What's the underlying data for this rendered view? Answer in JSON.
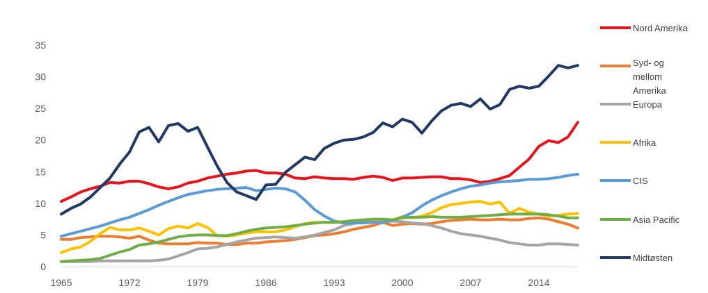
{
  "chart_data": {
    "type": "line",
    "title": "",
    "xlabel": "",
    "ylabel": "",
    "xlim": [
      1965,
      2018
    ],
    "ylim": [
      0,
      35
    ],
    "yticks": [
      0,
      5,
      10,
      15,
      20,
      25,
      30,
      35
    ],
    "xticks": [
      1965,
      1972,
      1979,
      1986,
      1993,
      2000,
      2007,
      2014
    ],
    "grid": false,
    "legend_position": "right",
    "x": [
      1965,
      1966,
      1967,
      1968,
      1969,
      1970,
      1971,
      1972,
      1973,
      1974,
      1975,
      1976,
      1977,
      1978,
      1979,
      1980,
      1981,
      1982,
      1983,
      1984,
      1985,
      1986,
      1987,
      1988,
      1989,
      1990,
      1991,
      1992,
      1993,
      1994,
      1995,
      1996,
      1997,
      1998,
      1999,
      2000,
      2001,
      2002,
      2003,
      2004,
      2005,
      2006,
      2007,
      2008,
      2009,
      2010,
      2011,
      2012,
      2013,
      2014,
      2015,
      2016,
      2017,
      2018
    ],
    "series": [
      {
        "name": "Nord Amerika",
        "color": "#e8141b",
        "values": [
          10.3,
          11.0,
          11.8,
          12.3,
          12.7,
          13.3,
          13.2,
          13.5,
          13.5,
          13.1,
          12.6,
          12.3,
          12.6,
          13.2,
          13.5,
          14.0,
          14.3,
          14.6,
          14.8,
          15.1,
          15.2,
          14.8,
          14.8,
          14.6,
          14.0,
          13.9,
          14.2,
          14.0,
          13.9,
          13.9,
          13.8,
          14.1,
          14.3,
          14.1,
          13.6,
          14.0,
          14.0,
          14.1,
          14.2,
          14.2,
          13.9,
          13.9,
          13.7,
          13.3,
          13.5,
          13.9,
          14.4,
          15.7,
          17.0,
          19.0,
          19.9,
          19.6,
          20.5,
          22.8
        ]
      },
      {
        "name": "Syd- og mellom Amerika",
        "color": "#ed7d31",
        "values": [
          4.3,
          4.3,
          4.6,
          4.7,
          4.8,
          4.8,
          4.7,
          4.5,
          4.8,
          4.2,
          3.7,
          3.6,
          3.6,
          3.6,
          3.8,
          3.7,
          3.7,
          3.5,
          3.5,
          3.7,
          3.7,
          3.9,
          4.0,
          4.1,
          4.3,
          4.6,
          4.9,
          5.0,
          5.2,
          5.5,
          5.9,
          6.2,
          6.5,
          7.0,
          6.5,
          6.7,
          6.8,
          6.7,
          6.8,
          7.1,
          7.3,
          7.4,
          7.5,
          7.4,
          7.4,
          7.5,
          7.4,
          7.4,
          7.6,
          7.7,
          7.5,
          7.1,
          6.7,
          6.1
        ]
      },
      {
        "name": "Europa",
        "color": "#a5a5a5",
        "values": [
          0.8,
          0.8,
          0.8,
          0.8,
          0.9,
          0.9,
          0.9,
          0.9,
          0.9,
          0.9,
          1.0,
          1.2,
          1.7,
          2.2,
          2.8,
          2.9,
          3.1,
          3.5,
          3.9,
          4.2,
          4.5,
          4.6,
          4.7,
          4.6,
          4.5,
          4.7,
          5.0,
          5.4,
          5.8,
          6.5,
          6.8,
          7.0,
          7.1,
          7.1,
          7.2,
          7.1,
          6.9,
          6.8,
          6.5,
          6.1,
          5.6,
          5.2,
          5.0,
          4.8,
          4.5,
          4.2,
          3.8,
          3.6,
          3.4,
          3.4,
          3.6,
          3.6,
          3.5,
          3.4
        ]
      },
      {
        "name": "Afrika",
        "color": "#ffc000",
        "values": [
          2.2,
          2.8,
          3.1,
          4.0,
          5.2,
          6.2,
          5.8,
          5.8,
          6.1,
          5.6,
          5.0,
          6.0,
          6.4,
          6.1,
          6.8,
          6.2,
          4.9,
          4.8,
          5.0,
          5.3,
          5.5,
          5.5,
          5.5,
          5.8,
          6.3,
          6.8,
          7.0,
          7.0,
          7.0,
          7.0,
          7.2,
          7.2,
          7.3,
          7.3,
          7.4,
          7.9,
          7.7,
          8.0,
          8.5,
          9.3,
          9.8,
          10.0,
          10.2,
          10.3,
          9.9,
          10.2,
          8.4,
          9.2,
          8.6,
          8.3,
          8.0,
          8.1,
          8.3,
          8.4
        ]
      },
      {
        "name": "CIS",
        "color": "#5b9bd5",
        "values": [
          4.8,
          5.2,
          5.6,
          6.0,
          6.4,
          6.9,
          7.4,
          7.8,
          8.4,
          9.0,
          9.7,
          10.3,
          10.9,
          11.4,
          11.7,
          12.0,
          12.2,
          12.3,
          12.4,
          12.5,
          12.0,
          12.2,
          12.4,
          12.3,
          11.8,
          10.5,
          9.0,
          8.0,
          7.2,
          6.9,
          6.9,
          6.9,
          7.0,
          7.0,
          7.3,
          7.8,
          8.5,
          9.6,
          10.5,
          11.2,
          11.8,
          12.3,
          12.7,
          12.9,
          13.2,
          13.4,
          13.5,
          13.6,
          13.8,
          13.8,
          13.9,
          14.1,
          14.4,
          14.6
        ]
      },
      {
        "name": "Asia Pacific",
        "color": "#70ad47",
        "values": [
          0.8,
          0.9,
          1.0,
          1.1,
          1.3,
          1.8,
          2.3,
          2.7,
          3.4,
          3.6,
          3.9,
          4.3,
          4.7,
          4.9,
          5.0,
          5.0,
          4.9,
          4.9,
          5.2,
          5.6,
          5.9,
          6.1,
          6.2,
          6.3,
          6.5,
          6.7,
          6.9,
          7.0,
          7.0,
          7.1,
          7.3,
          7.4,
          7.5,
          7.5,
          7.4,
          7.7,
          7.8,
          7.8,
          7.9,
          7.8,
          7.8,
          7.8,
          7.9,
          8.0,
          8.1,
          8.2,
          8.3,
          8.3,
          8.3,
          8.3,
          8.2,
          8.0,
          7.7,
          7.7
        ]
      },
      {
        "name": "Midtøsten",
        "color": "#203864",
        "values": [
          8.3,
          9.2,
          9.9,
          11.0,
          12.5,
          14.0,
          16.2,
          18.1,
          21.3,
          22.0,
          19.7,
          22.3,
          22.6,
          21.4,
          22.0,
          18.9,
          15.9,
          13.3,
          11.8,
          11.2,
          10.6,
          12.9,
          13.0,
          14.9,
          16.1,
          17.3,
          16.9,
          18.7,
          19.5,
          20.0,
          20.1,
          20.5,
          21.2,
          22.7,
          22.1,
          23.3,
          22.8,
          21.1,
          23.0,
          24.6,
          25.5,
          25.8,
          25.3,
          26.5,
          24.9,
          25.6,
          28.0,
          28.5,
          28.2,
          28.5,
          30.1,
          31.8,
          31.4,
          31.8
        ]
      }
    ]
  }
}
